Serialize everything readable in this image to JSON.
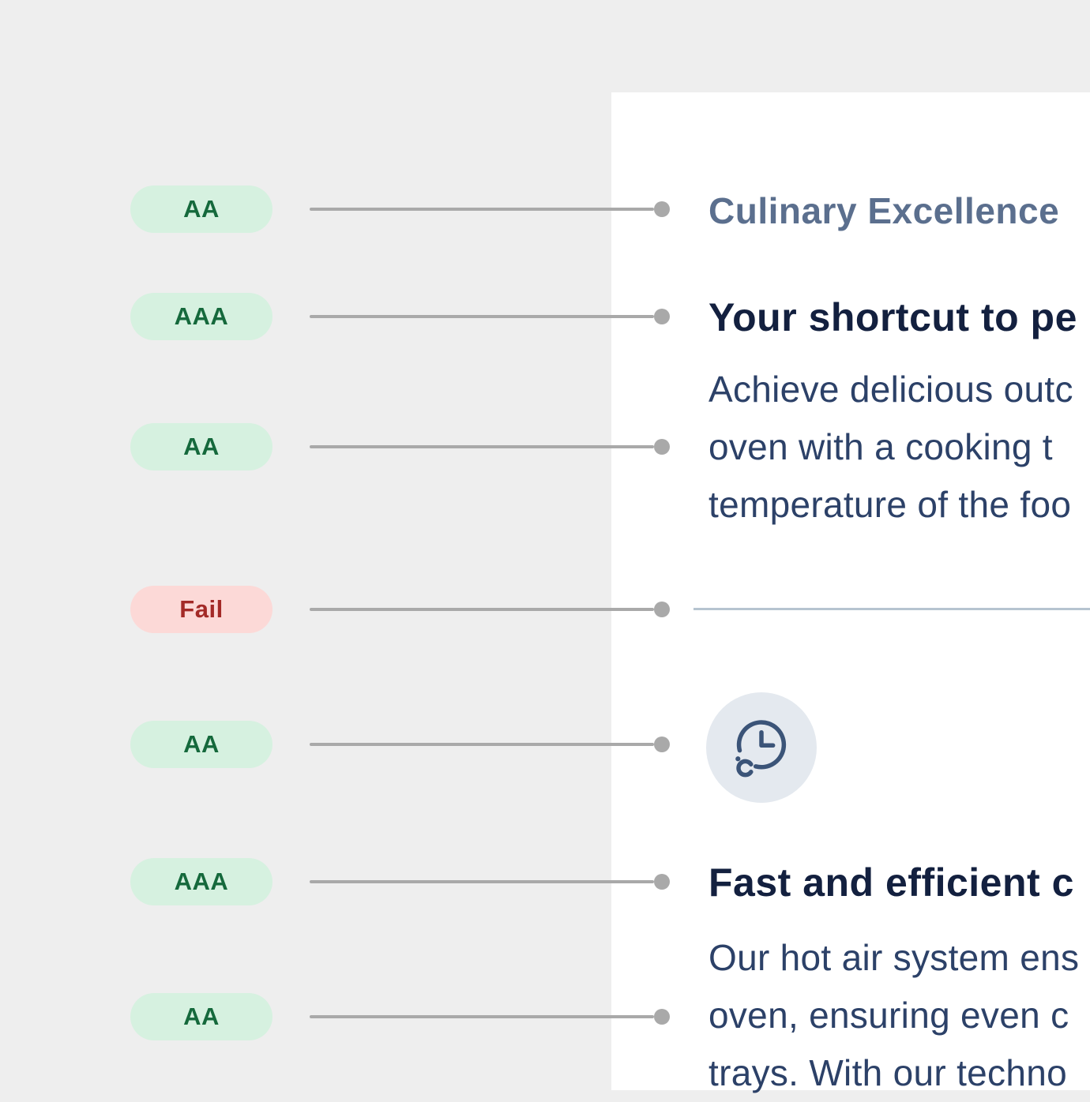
{
  "colors": {
    "page_bg": "#eeeeee",
    "panel_bg": "#ffffff",
    "pass_bg": "#d6f1e0",
    "pass_text": "#15693c",
    "fail_bg": "#fcd9d7",
    "fail_text": "#a32a27",
    "connector": "#a9a9a9",
    "divider": "#b6c4d0",
    "eyebrow_text": "#5b6f8e",
    "heading_text": "#13203f",
    "body_text": "#2c4168",
    "icon_bg": "#e4e9ef",
    "icon_stroke": "#3b5478"
  },
  "annotations": [
    {
      "label": "AA",
      "status": "pass"
    },
    {
      "label": "AAA",
      "status": "pass"
    },
    {
      "label": "AA",
      "status": "pass"
    },
    {
      "label": "Fail",
      "status": "fail"
    },
    {
      "label": "AA",
      "status": "pass"
    },
    {
      "label": "AAA",
      "status": "pass"
    },
    {
      "label": "AA",
      "status": "pass"
    }
  ],
  "content": {
    "eyebrow": "Culinary Excellence",
    "section1": {
      "heading": "Your shortcut to pe",
      "body_lines": [
        "Achieve delicious outc",
        "oven with a cooking t",
        "temperature of the foo"
      ]
    },
    "icon_name": "cooking-time-temperature-icon",
    "section2": {
      "heading": "Fast and efficient c",
      "body_lines": [
        "Our hot air system ens",
        "oven, ensuring even c",
        "trays. With our techno"
      ]
    }
  }
}
